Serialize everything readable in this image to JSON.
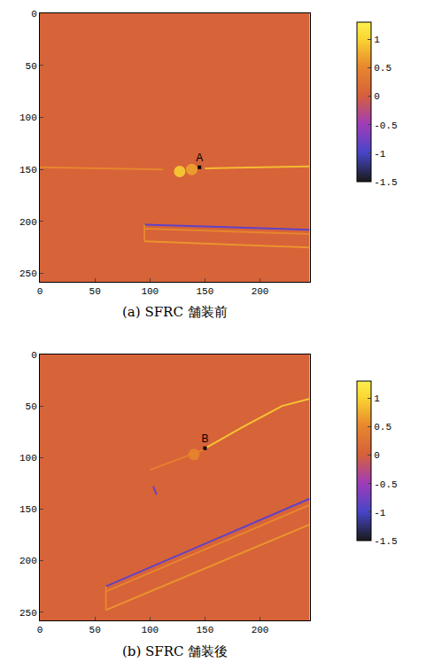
{
  "chart_data": [
    {
      "type": "heatmap",
      "caption": "(a) SFRC 舗装前",
      "xlim": [
        0,
        245
      ],
      "ylim": [
        258,
        0
      ],
      "xticks": [
        0,
        50,
        100,
        150,
        200
      ],
      "yticks": [
        0,
        50,
        100,
        150,
        200,
        250
      ],
      "x_edges": [
        0,
        245
      ],
      "y_edges": [
        0,
        258
      ],
      "z": [
        [
          0.05
        ]
      ],
      "colorbar": {
        "range": [
          -1.5,
          1.3
        ],
        "ticks": [
          1,
          0.5,
          0,
          -0.5,
          -1,
          -1.5
        ]
      },
      "lines": [
        {
          "x": [
            0,
            60,
            112
          ],
          "y": [
            148,
            149,
            150
          ],
          "value": 0.5
        },
        {
          "x": [
            150,
            190,
            245
          ],
          "y": [
            149,
            148,
            147
          ],
          "value": 0.85
        },
        {
          "x": [
            95,
            245
          ],
          "y": [
            203,
            208
          ],
          "value": -0.85
        },
        {
          "x": [
            95,
            245
          ],
          "y": [
            207,
            212
          ],
          "value": 0.5
        },
        {
          "x": [
            95,
            245
          ],
          "y": [
            219,
            225
          ],
          "value": 0.6
        },
        {
          "x": [
            95,
            95
          ],
          "y": [
            203,
            219
          ],
          "value": 0.5
        }
      ],
      "spots": [
        {
          "x": 127,
          "y": 152,
          "value": 1.0
        },
        {
          "x": 138,
          "y": 150,
          "value": 0.7
        }
      ],
      "points": [
        {
          "label": "A",
          "x": 145,
          "y": 148
        }
      ]
    },
    {
      "type": "heatmap",
      "caption": "(b) SFRC 舗装後",
      "xlim": [
        0,
        245
      ],
      "ylim": [
        258,
        0
      ],
      "xticks": [
        0,
        50,
        100,
        150,
        200
      ],
      "yticks": [
        0,
        50,
        100,
        150,
        200,
        250
      ],
      "x_edges": [
        0,
        245
      ],
      "y_edges": [
        0,
        258
      ],
      "z": [
        [
          0.05
        ]
      ],
      "colorbar": {
        "range": [
          -1.5,
          1.3
        ],
        "ticks": [
          1,
          0.5,
          0,
          -0.5,
          -1,
          -1.5
        ]
      },
      "lines": [
        {
          "x": [
            100,
            125,
            150
          ],
          "y": [
            112,
            102,
            92
          ],
          "value": 0.4
        },
        {
          "x": [
            150,
            185,
            220,
            245
          ],
          "y": [
            91,
            70,
            50,
            43
          ],
          "value": 0.9
        },
        {
          "x": [
            103,
            106
          ],
          "y": [
            128,
            136
          ],
          "value": -0.8
        },
        {
          "x": [
            60,
            245
          ],
          "y": [
            225,
            140
          ],
          "value": -0.85
        },
        {
          "x": [
            60,
            245
          ],
          "y": [
            230,
            146
          ],
          "value": 0.5
        },
        {
          "x": [
            60,
            245
          ],
          "y": [
            248,
            165
          ],
          "value": 0.6
        },
        {
          "x": [
            60,
            60
          ],
          "y": [
            225,
            248
          ],
          "value": 0.5
        }
      ],
      "spots": [
        {
          "x": 140,
          "y": 97,
          "value": 0.5
        }
      ],
      "points": [
        {
          "label": "B",
          "x": 150,
          "y": 91
        }
      ]
    }
  ]
}
